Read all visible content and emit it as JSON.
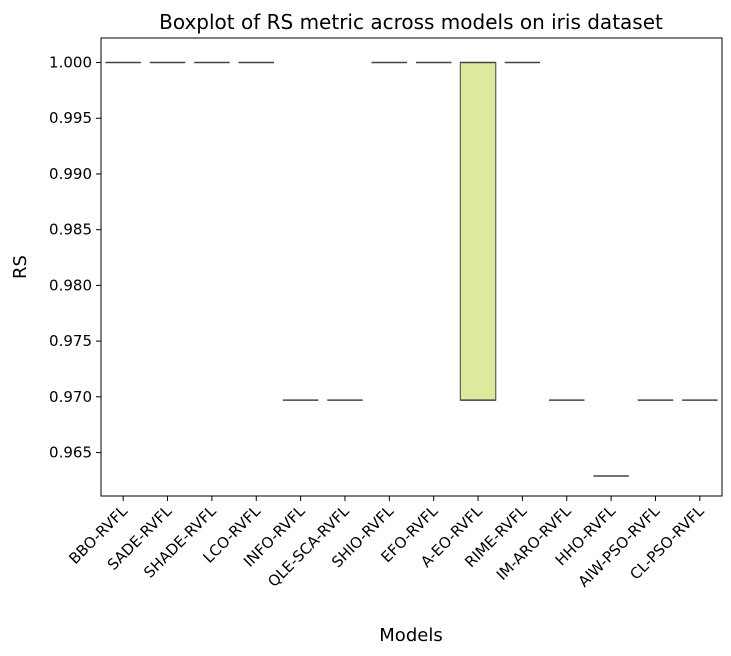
{
  "chart_data": {
    "type": "box",
    "title": "Boxplot of RS metric across models on iris dataset",
    "xlabel": "Models",
    "ylabel": "RS",
    "ylim": [
      0.9611,
      1.0022
    ],
    "yticks": [
      "0.965",
      "0.970",
      "0.975",
      "0.980",
      "0.985",
      "0.990",
      "0.995",
      "1.000"
    ],
    "grid": false,
    "categories": [
      "BBO-RVFL",
      "SADE-RVFL",
      "SHADE-RVFL",
      "LCO-RVFL",
      "INFO-RVFL",
      "QLE-SCA-RVFL",
      "SHIO-RVFL",
      "EFO-RVFL",
      "A-EO-RVFL",
      "RIME-RVFL",
      "IM-ARO-RVFL",
      "HHO-RVFL",
      "AIW-PSO-RVFL",
      "CL-PSO-RVFL"
    ],
    "boxes": [
      {
        "q1": 1.0,
        "median": 1.0,
        "q3": 1.0
      },
      {
        "q1": 1.0,
        "median": 1.0,
        "q3": 1.0
      },
      {
        "q1": 1.0,
        "median": 1.0,
        "q3": 1.0
      },
      {
        "q1": 1.0,
        "median": 1.0,
        "q3": 1.0
      },
      {
        "q1": 0.9697,
        "median": 0.9697,
        "q3": 0.9697
      },
      {
        "q1": 0.9697,
        "median": 0.9697,
        "q3": 0.9697
      },
      {
        "q1": 1.0,
        "median": 1.0,
        "q3": 1.0
      },
      {
        "q1": 1.0,
        "median": 1.0,
        "q3": 1.0
      },
      {
        "q1": 0.9697,
        "median": 1.0,
        "q3": 1.0
      },
      {
        "q1": 1.0,
        "median": 1.0,
        "q3": 1.0
      },
      {
        "q1": 0.9697,
        "median": 0.9697,
        "q3": 0.9697
      },
      {
        "q1": 0.9629,
        "median": 0.9629,
        "q3": 0.9629
      },
      {
        "q1": 0.9697,
        "median": 0.9697,
        "q3": 0.9697
      },
      {
        "q1": 0.9697,
        "median": 0.9697,
        "q3": 0.9697
      }
    ],
    "colors": [
      "#4c1d80",
      "#48167e",
      "#472a80",
      "#46397f",
      "#3f4a89",
      "#365a8c",
      "#2e6a8e",
      "#25798d",
      "#dfe99e",
      "#2e978a",
      "#3ea883",
      "#5ab777",
      "#7ec65f",
      "#a7d04a"
    ],
    "box_edge_color": "#444444"
  }
}
